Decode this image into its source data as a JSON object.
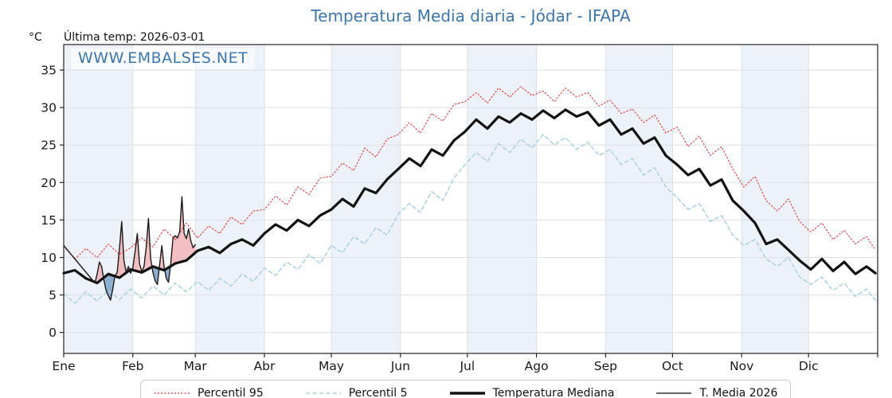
{
  "header": {
    "title": "Temperatura Media diaria - Jódar - IFAPA",
    "unit_label": "°C",
    "last_temp": "Última temp: 2026-03-01"
  },
  "watermark": "WWW.EMBALSES.NET",
  "chart_data": {
    "type": "line",
    "title": "Temperatura Media diaria - Jódar - IFAPA",
    "xlabel": "",
    "ylabel": "°C",
    "x_range": [
      1,
      366
    ],
    "y_range": [
      -2.8,
      38.4
    ],
    "y_ticks": [
      0,
      5,
      10,
      15,
      20,
      25,
      30,
      35
    ],
    "x_tick_labels": [
      "Ene",
      "Feb",
      "Mar",
      "Abr",
      "May",
      "Jun",
      "Jul",
      "Ago",
      "Sep",
      "Oct",
      "Nov",
      "Dic"
    ],
    "month_start_days": [
      1,
      32,
      60,
      91,
      121,
      152,
      182,
      213,
      244,
      274,
      305,
      335,
      366
    ],
    "grid": true,
    "grid_color": "#dbe0e6",
    "alternating_band_color": "#edf2f8",
    "spine_color": "#262626",
    "legend_position": "bottom",
    "climatology_days": [
      1,
      6,
      11,
      16,
      21,
      26,
      31,
      36,
      41,
      46,
      51,
      56,
      61,
      66,
      71,
      76,
      81,
      86,
      91,
      96,
      101,
      106,
      111,
      116,
      121,
      126,
      131,
      136,
      141,
      146,
      151,
      156,
      161,
      166,
      171,
      176,
      181,
      186,
      191,
      196,
      201,
      206,
      211,
      216,
      221,
      226,
      231,
      236,
      241,
      246,
      251,
      256,
      261,
      266,
      271,
      276,
      281,
      286,
      291,
      296,
      301,
      306,
      311,
      316,
      321,
      326,
      331,
      336,
      341,
      346,
      351,
      356,
      361,
      365
    ],
    "series": [
      {
        "name": "Percentil 95",
        "color": "#e03b3b",
        "style": "dotted",
        "width": 1.1,
        "values": [
          11.5,
          9.8,
          11.2,
          10.0,
          11.8,
          10.4,
          11.3,
          12.6,
          11.4,
          13.8,
          12.4,
          14.6,
          12.6,
          14.2,
          13.2,
          15.4,
          14.4,
          16.2,
          16.4,
          18.2,
          17.0,
          19.4,
          18.4,
          20.6,
          20.8,
          22.6,
          21.6,
          24.6,
          23.4,
          25.8,
          26.4,
          28.0,
          26.6,
          29.2,
          28.2,
          30.4,
          30.8,
          32.0,
          30.6,
          32.6,
          31.4,
          32.8,
          31.6,
          32.2,
          30.8,
          32.6,
          31.4,
          32.0,
          30.2,
          31.0,
          29.2,
          29.8,
          28.0,
          29.0,
          26.6,
          27.4,
          24.8,
          26.2,
          23.6,
          24.8,
          21.8,
          19.4,
          20.8,
          17.6,
          16.2,
          17.8,
          14.8,
          13.4,
          14.6,
          12.4,
          13.6,
          11.8,
          12.8,
          11.0
        ]
      },
      {
        "name": "Percentil 5",
        "color": "#a5cede",
        "style": "dashed",
        "width": 1.4,
        "values": [
          5.2,
          3.9,
          5.4,
          4.2,
          5.6,
          4.4,
          5.8,
          4.6,
          6.2,
          5.0,
          6.6,
          5.4,
          6.8,
          5.6,
          7.2,
          6.2,
          7.8,
          6.8,
          8.6,
          7.6,
          9.4,
          8.4,
          10.4,
          9.2,
          11.6,
          10.6,
          12.8,
          11.8,
          14.0,
          13.0,
          15.8,
          17.2,
          16.0,
          18.8,
          17.6,
          20.6,
          22.4,
          24.0,
          22.8,
          25.2,
          24.0,
          25.8,
          24.6,
          26.4,
          25.0,
          26.0,
          24.4,
          25.4,
          23.6,
          24.4,
          22.4,
          23.2,
          21.0,
          22.0,
          19.4,
          18.0,
          16.4,
          17.2,
          14.8,
          15.6,
          13.0,
          11.6,
          12.4,
          9.8,
          8.8,
          10.0,
          7.4,
          6.4,
          7.4,
          5.6,
          6.6,
          4.8,
          5.8,
          4.3
        ]
      },
      {
        "name": "Temperatura Mediana",
        "color": "#111111",
        "style": "solid",
        "width": 3.2,
        "values": [
          7.9,
          8.3,
          7.2,
          6.6,
          7.8,
          7.3,
          8.4,
          8.0,
          8.8,
          8.3,
          9.2,
          9.6,
          10.9,
          11.4,
          10.6,
          11.8,
          12.4,
          11.6,
          13.2,
          14.4,
          13.6,
          15.0,
          14.2,
          15.6,
          16.4,
          17.8,
          16.8,
          19.2,
          18.6,
          20.4,
          21.8,
          23.2,
          22.2,
          24.4,
          23.6,
          25.6,
          26.8,
          28.4,
          27.2,
          28.8,
          28.0,
          29.2,
          28.4,
          29.6,
          28.6,
          29.7,
          28.8,
          29.4,
          27.6,
          28.4,
          26.4,
          27.2,
          25.2,
          26.0,
          23.6,
          22.4,
          21.0,
          21.8,
          19.6,
          20.4,
          17.6,
          16.2,
          14.6,
          11.8,
          12.4,
          11.0,
          9.6,
          8.4,
          9.8,
          8.2,
          9.4,
          7.8,
          8.8,
          7.9
        ]
      }
    ],
    "current_year_series": {
      "name": "T. Media 2026",
      "color": "#1a1a1a",
      "style": "solid",
      "width": 1.4,
      "days": [
        1,
        15,
        16,
        17,
        18,
        19,
        20,
        21,
        22,
        23,
        24,
        25,
        26,
        27,
        28,
        29,
        30,
        31,
        32,
        33,
        34,
        35,
        36,
        37,
        38,
        39,
        40,
        41,
        42,
        43,
        44,
        45,
        46,
        47,
        48,
        49,
        50,
        51,
        52,
        53,
        54,
        55,
        56,
        57,
        58,
        59,
        60
      ],
      "values": [
        11.6,
        6.6,
        7.8,
        9.4,
        8.8,
        7.0,
        5.6,
        4.9,
        4.3,
        5.8,
        7.6,
        8.0,
        11.2,
        14.8,
        9.6,
        8.0,
        8.8,
        7.9,
        8.6,
        10.8,
        13.2,
        9.2,
        8.1,
        8.8,
        11.4,
        15.2,
        9.8,
        8.0,
        6.9,
        6.4,
        9.0,
        11.6,
        8.8,
        7.2,
        6.7,
        9.2,
        12.6,
        12.9,
        12.6,
        13.4,
        18.1,
        13.2,
        12.5,
        13.8,
        12.2,
        11.3,
        11.7
      ],
      "last_day_label": "2026-03-01"
    },
    "fills": {
      "description": "area between T. Media 2026 and Temperatura Mediana",
      "above_color": "#f1b4b9",
      "below_color": "#7aa3c9",
      "opacity": 0.85,
      "fill_start_day": 15
    },
    "legend": [
      {
        "label": "Percentil 95",
        "style": "dotted",
        "color": "#e03b3b",
        "thickness": 1.5
      },
      {
        "label": "Percentil 5",
        "style": "dashed",
        "color": "#a5cede",
        "thickness": 1.5
      },
      {
        "label": "Temperatura Mediana",
        "style": "solid",
        "color": "#111111",
        "thickness": 3.5
      },
      {
        "label": "T. Media 2026",
        "style": "solid",
        "color": "#333333",
        "thickness": 1.4
      }
    ]
  }
}
